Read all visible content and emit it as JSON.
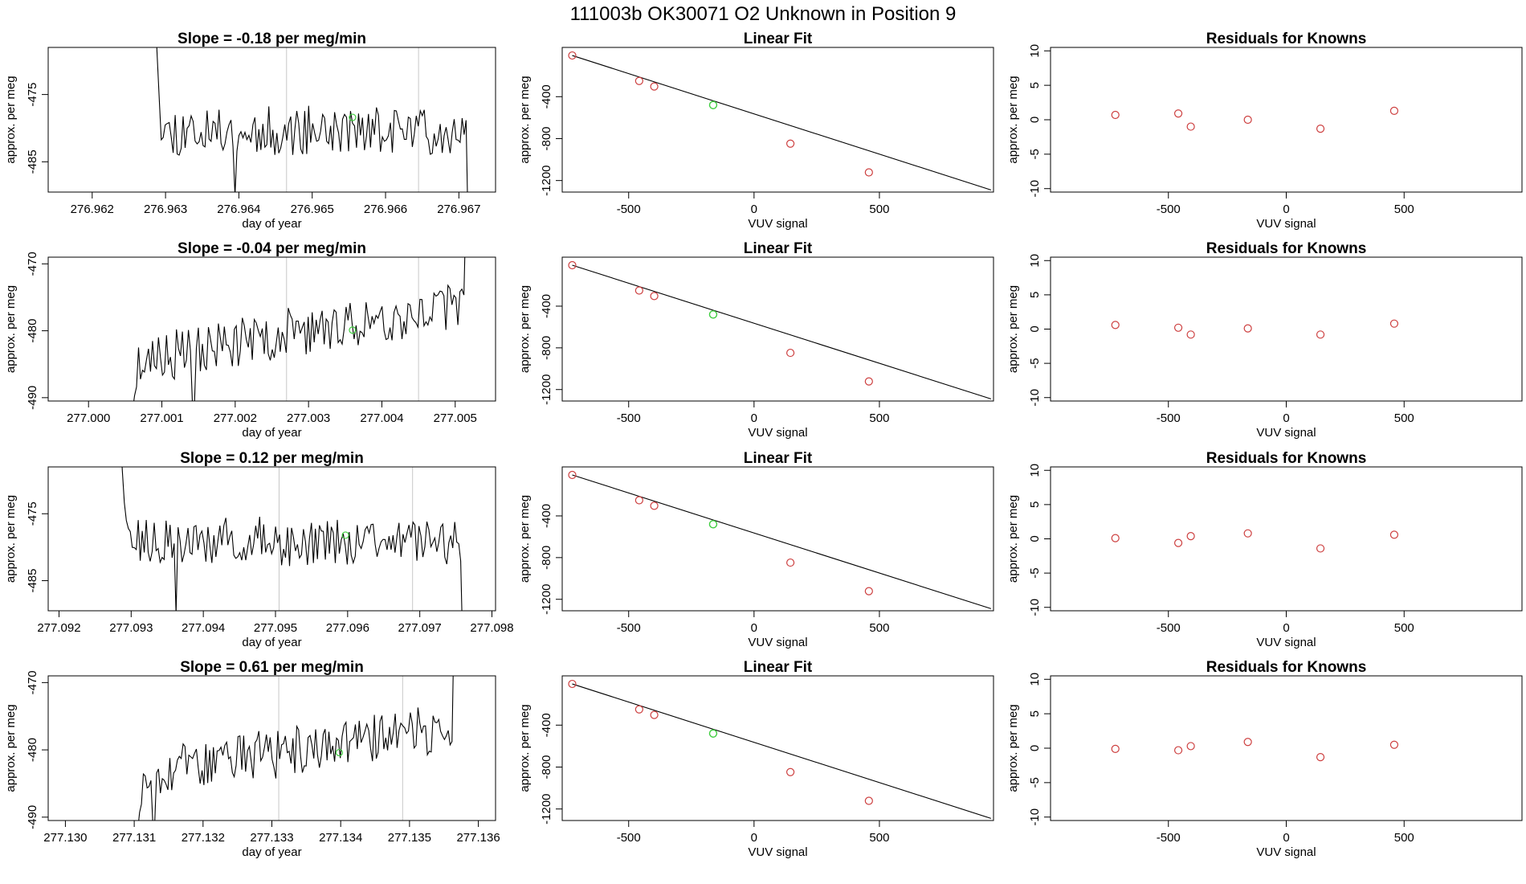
{
  "figure": {
    "title": "111003b      OK30071    O2 Unknown in Position  9",
    "colors": {
      "line": "#000000",
      "known_point": "#cd3f3f",
      "unknown_point": "#3fcd3f",
      "vline": "#c8c8c8",
      "frame": "#000000"
    }
  },
  "chart_data": [
    {
      "type": "line",
      "panel": "trace",
      "row": 0,
      "title": "Slope =  -0.18  per meg/min",
      "xlabel": "day of year",
      "ylabel": "approx. per meg",
      "xlim": [
        276.9614,
        276.9675
      ],
      "ylim": [
        -489.5,
        -468
      ],
      "xticks": [
        276.962,
        276.963,
        276.964,
        276.965,
        276.966,
        276.967
      ],
      "xtick_labels": [
        "276.962",
        "276.963",
        "276.964",
        "276.965",
        "276.966",
        "276.967"
      ],
      "yticks": [
        -485,
        -475
      ],
      "ytick_labels": [
        "-485",
        "-475"
      ],
      "vlines": [
        276.96465,
        276.96645
      ],
      "highlight_point": {
        "x": 276.96555,
        "y": -478.4
      },
      "trace": {
        "x_start": 276.96286,
        "x_end": 276.96718,
        "n": 160,
        "baseline": -480.5,
        "trend": 0.15,
        "spike_start": -463,
        "spike_end": -495,
        "dip_at": 0.25,
        "dip_value": -490,
        "seed": 11
      }
    },
    {
      "type": "line",
      "panel": "trace",
      "row": 1,
      "title": "Slope =  -0.04  per meg/min",
      "xlabel": "day of year",
      "ylabel": "approx. per meg",
      "xlim": [
        276.99945,
        277.00555
      ],
      "ylim": [
        -490.5,
        -469
      ],
      "xticks": [
        277.0,
        277.001,
        277.002,
        277.003,
        277.004,
        277.005
      ],
      "xtick_labels": [
        "277.000",
        "277.001",
        "277.002",
        "277.003",
        "277.004",
        "277.005"
      ],
      "yticks": [
        -490,
        -480,
        -470
      ],
      "ytick_labels": [
        "-490",
        "-480",
        "-470"
      ],
      "vlines": [
        277.0027,
        277.0045
      ],
      "highlight_point": {
        "x": 277.0036,
        "y": -479.9
      },
      "trace": {
        "x_start": 277.0006,
        "x_end": 277.0052,
        "n": 170,
        "baseline": -484.5,
        "trend": 8.5,
        "spike_start": -492,
        "spike_end": -462,
        "dip_at": 0.18,
        "dip_value": -491,
        "seed": 23
      }
    },
    {
      "type": "line",
      "panel": "trace",
      "row": 2,
      "title": "Slope =  0.12  per meg/min",
      "xlabel": "day of year",
      "ylabel": "approx. per meg",
      "xlim": [
        277.09185,
        277.09805
      ],
      "ylim": [
        -489.5,
        -468
      ],
      "xticks": [
        277.092,
        277.093,
        277.094,
        277.095,
        277.096,
        277.097,
        277.098
      ],
      "xtick_labels": [
        "277.092",
        "277.093",
        "277.094",
        "277.095",
        "277.096",
        "277.097",
        "277.098"
      ],
      "yticks": [
        -485,
        -475
      ],
      "ytick_labels": [
        "-485",
        "-475"
      ],
      "vlines": [
        277.09505,
        277.0969
      ],
      "highlight_point": {
        "x": 277.09597,
        "y": -478.2
      },
      "trace": {
        "x_start": 277.09285,
        "x_end": 277.09765,
        "n": 175,
        "baseline": -479.5,
        "trend": 0.3,
        "spike_start": -463,
        "spike_end": -495,
        "dip_at": 0.16,
        "dip_value": -490,
        "seed": 37
      }
    },
    {
      "type": "line",
      "panel": "trace",
      "row": 3,
      "title": "Slope =  0.61  per meg/min",
      "xlabel": "day of year",
      "ylabel": "approx. per meg",
      "xlim": [
        277.12975,
        277.13625
      ],
      "ylim": [
        -490.5,
        -469
      ],
      "xticks": [
        277.13,
        277.131,
        277.132,
        277.133,
        277.134,
        277.135,
        277.136
      ],
      "xtick_labels": [
        "277.130",
        "277.131",
        "277.132",
        "277.133",
        "277.134",
        "277.135",
        "277.136"
      ],
      "yticks": [
        -490,
        -480,
        -470
      ],
      "ytick_labels": [
        "-490",
        "-480",
        "-470"
      ],
      "vlines": [
        277.1331,
        277.1349
      ],
      "highlight_point": {
        "x": 277.13398,
        "y": -480.4
      },
      "trace": {
        "x_start": 277.13105,
        "x_end": 277.1357,
        "n": 170,
        "baseline": -483.5,
        "trend": 7.0,
        "spike_start": -492,
        "spike_end": -462,
        "dip_at": 0.05,
        "dip_value": -491,
        "seed": 53
      }
    },
    {
      "type": "scatter",
      "panel": "fit",
      "row": 0,
      "title": "Linear Fit",
      "xlabel": "VUV signal",
      "ylabel": "approx. per meg",
      "xlim": [
        -765,
        955
      ],
      "ylim": [
        -1310,
        70
      ],
      "xticks": [
        -500,
        0,
        500
      ],
      "xtick_labels": [
        "-500",
        "0",
        "500"
      ],
      "yticks": [
        -1200,
        -800,
        -400
      ],
      "ytick_labels": [
        "-1200",
        "-800",
        "-400"
      ],
      "knowns": {
        "x": [
          -725,
          -458,
          -398,
          145,
          458
        ],
        "y": [
          -7,
          -250,
          -303,
          -848,
          -1122
        ]
      },
      "unknown": {
        "x": -163,
        "y": -480
      },
      "fit_line": {
        "x": [
          -725,
          945
        ],
        "y": [
          -7,
          -1290
        ]
      }
    },
    {
      "type": "scatter",
      "panel": "fit",
      "row": 1,
      "title": "Linear Fit",
      "xlabel": "VUV signal",
      "ylabel": "approx. per meg",
      "xlim": [
        -765,
        955
      ],
      "ylim": [
        -1310,
        70
      ],
      "xticks": [
        -500,
        0,
        500
      ],
      "xtick_labels": [
        "-500",
        "0",
        "500"
      ],
      "yticks": [
        -1200,
        -800,
        -400
      ],
      "ytick_labels": [
        "-1200",
        "-800",
        "-400"
      ],
      "knowns": {
        "x": [
          -725,
          -458,
          -398,
          145,
          458
        ],
        "y": [
          -7,
          -250,
          -303,
          -848,
          -1122
        ]
      },
      "unknown": {
        "x": -163,
        "y": -480
      },
      "fit_line": {
        "x": [
          -725,
          945
        ],
        "y": [
          -7,
          -1290
        ]
      }
    },
    {
      "type": "scatter",
      "panel": "fit",
      "row": 2,
      "title": "Linear Fit",
      "xlabel": "VUV signal",
      "ylabel": "approx. per meg",
      "xlim": [
        -765,
        955
      ],
      "ylim": [
        -1310,
        70
      ],
      "xticks": [
        -500,
        0,
        500
      ],
      "xtick_labels": [
        "-500",
        "0",
        "500"
      ],
      "yticks": [
        -1200,
        -800,
        -400
      ],
      "ytick_labels": [
        "-1200",
        "-800",
        "-400"
      ],
      "knowns": {
        "x": [
          -725,
          -458,
          -398,
          145,
          458
        ],
        "y": [
          -7,
          -250,
          -303,
          -848,
          -1122
        ]
      },
      "unknown": {
        "x": -163,
        "y": -480
      },
      "fit_line": {
        "x": [
          -725,
          945
        ],
        "y": [
          -7,
          -1290
        ]
      }
    },
    {
      "type": "scatter",
      "panel": "fit",
      "row": 3,
      "title": "Linear Fit",
      "xlabel": "VUV signal",
      "ylabel": "approx. per meg",
      "xlim": [
        -765,
        955
      ],
      "ylim": [
        -1310,
        70
      ],
      "xticks": [
        -500,
        0,
        500
      ],
      "xtick_labels": [
        "-500",
        "0",
        "500"
      ],
      "yticks": [
        -1200,
        -800,
        -400
      ],
      "ytick_labels": [
        "-1200",
        "-800",
        "-400"
      ],
      "knowns": {
        "x": [
          -725,
          -458,
          -398,
          145,
          458
        ],
        "y": [
          -7,
          -250,
          -303,
          -848,
          -1122
        ]
      },
      "unknown": {
        "x": -163,
        "y": -480
      },
      "fit_line": {
        "x": [
          -725,
          945
        ],
        "y": [
          -7,
          -1290
        ]
      }
    },
    {
      "type": "scatter",
      "panel": "residuals",
      "row": 0,
      "title": "Residuals for Knowns",
      "xlabel": "VUV signal",
      "ylabel": "approx. per meg",
      "xlim": [
        -1000,
        1000
      ],
      "ylim": [
        -10.5,
        10.5
      ],
      "xticks": [
        -500,
        0,
        500
      ],
      "xtick_labels": [
        "-500",
        "0",
        "500"
      ],
      "yticks": [
        -10,
        -5,
        0,
        5,
        10
      ],
      "ytick_labels": [
        "-10",
        "-5",
        "0",
        "5",
        "10"
      ],
      "points": {
        "x": [
          -725,
          -458,
          -405,
          -163,
          145,
          458
        ],
        "y": [
          0.7,
          0.9,
          -1.0,
          0.0,
          -1.3,
          1.3
        ]
      }
    },
    {
      "type": "scatter",
      "panel": "residuals",
      "row": 1,
      "title": "Residuals for Knowns",
      "xlabel": "VUV signal",
      "ylabel": "approx. per meg",
      "xlim": [
        -1000,
        1000
      ],
      "ylim": [
        -10.5,
        10.5
      ],
      "xticks": [
        -500,
        0,
        500
      ],
      "xtick_labels": [
        "-500",
        "0",
        "500"
      ],
      "yticks": [
        -10,
        -5,
        0,
        5,
        10
      ],
      "ytick_labels": [
        "-10",
        "-5",
        "0",
        "5",
        "10"
      ],
      "points": {
        "x": [
          -725,
          -458,
          -405,
          -163,
          145,
          458
        ],
        "y": [
          0.6,
          0.2,
          -0.8,
          0.1,
          -0.8,
          0.8
        ]
      }
    },
    {
      "type": "scatter",
      "panel": "residuals",
      "row": 2,
      "title": "Residuals for Knowns",
      "xlabel": "VUV signal",
      "ylabel": "approx. per meg",
      "xlim": [
        -1000,
        1000
      ],
      "ylim": [
        -10.5,
        10.5
      ],
      "xticks": [
        -500,
        0,
        500
      ],
      "xtick_labels": [
        "-500",
        "0",
        "500"
      ],
      "yticks": [
        -10,
        -5,
        0,
        5,
        10
      ],
      "ytick_labels": [
        "-10",
        "-5",
        "0",
        "5",
        "10"
      ],
      "points": {
        "x": [
          -725,
          -458,
          -405,
          -163,
          145,
          458
        ],
        "y": [
          0.1,
          -0.6,
          0.4,
          0.8,
          -1.4,
          0.6
        ]
      }
    },
    {
      "type": "scatter",
      "panel": "residuals",
      "row": 3,
      "title": "Residuals for Knowns",
      "xlabel": "VUV signal",
      "ylabel": "approx. per meg",
      "xlim": [
        -1000,
        1000
      ],
      "ylim": [
        -10.5,
        10.5
      ],
      "xticks": [
        -500,
        0,
        500
      ],
      "xtick_labels": [
        "-500",
        "0",
        "500"
      ],
      "yticks": [
        -10,
        -5,
        0,
        5,
        10
      ],
      "ytick_labels": [
        "-10",
        "-5",
        "0",
        "5",
        "10"
      ],
      "points": {
        "x": [
          -725,
          -458,
          -405,
          -163,
          145,
          458
        ],
        "y": [
          -0.1,
          -0.3,
          0.3,
          0.9,
          -1.3,
          0.5
        ]
      }
    }
  ]
}
